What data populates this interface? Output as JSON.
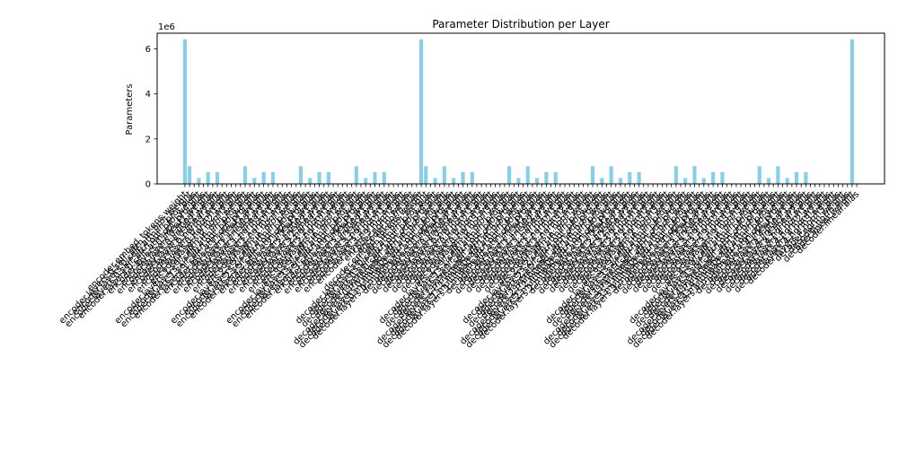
{
  "chart_data": {
    "type": "bar",
    "title": "Parameter Distribution per Layer",
    "xlabel": "",
    "ylabel": "Parameters",
    "y_scale_multiplier": "1e6",
    "ylim": [
      0,
      6.7
    ],
    "yticks": [
      0,
      2,
      4,
      6
    ],
    "bar_color": "#87ceeb",
    "grid": false,
    "category_count": 144,
    "categories": [
      "encoder.embed_tokens.weight",
      "encoder.layers.0.self_attn.in_proj_weight",
      "encoder.layers.0.self_attn.in_proj_bias",
      "encoder.layers.0.self_attn.out_proj.weight",
      "encoder.layers.0.self_attn.out_proj.bias",
      "encoder.layers.0.linear1.weight",
      "encoder.layers.0.linear1.bias",
      "encoder.layers.0.linear2.weight",
      "encoder.layers.0.linear2.bias",
      "encoder.layers.0.norm1.weight",
      "encoder.layers.0.norm1.bias",
      "encoder.layers.0.norm2.weight",
      "encoder.layers.0.norm2.bias",
      "encoder.layers.1.self_attn.in_proj_weight",
      "encoder.layers.1.self_attn.in_proj_bias",
      "encoder.layers.1.self_attn.out_proj.weight",
      "encoder.layers.1.self_attn.out_proj.bias",
      "encoder.layers.1.linear1.weight",
      "encoder.layers.1.linear1.bias",
      "encoder.layers.1.linear2.weight",
      "encoder.layers.1.linear2.bias",
      "encoder.layers.1.norm1.weight",
      "encoder.layers.1.norm1.bias",
      "encoder.layers.1.norm2.weight",
      "encoder.layers.1.norm2.bias",
      "encoder.layers.2.self_attn.in_proj_weight",
      "encoder.layers.2.self_attn.in_proj_bias",
      "encoder.layers.2.self_attn.out_proj.weight",
      "encoder.layers.2.self_attn.out_proj.bias",
      "encoder.layers.2.linear1.weight",
      "encoder.layers.2.linear1.bias",
      "encoder.layers.2.linear2.weight",
      "encoder.layers.2.linear2.bias",
      "encoder.layers.2.norm1.weight",
      "encoder.layers.2.norm1.bias",
      "encoder.layers.2.norm2.weight",
      "encoder.layers.2.norm2.bias",
      "encoder.layers.3.self_attn.in_proj_weight",
      "encoder.layers.3.self_attn.in_proj_bias",
      "encoder.layers.3.self_attn.out_proj.weight",
      "encoder.layers.3.self_attn.out_proj.bias",
      "encoder.layers.3.linear1.weight",
      "encoder.layers.3.linear1.bias",
      "encoder.layers.3.linear2.weight",
      "encoder.layers.3.linear2.bias",
      "encoder.layers.3.norm1.weight",
      "encoder.layers.3.norm1.bias",
      "encoder.layers.3.norm2.weight",
      "encoder.layers.3.norm2.bias",
      "encoder.norm.weight",
      "encoder.norm.bias",
      "decoder.embed_tokens.weight",
      "decoder.layers.0.self_attn.in_proj_weight",
      "decoder.layers.0.self_attn.in_proj_bias",
      "decoder.layers.0.self_attn.out_proj.weight",
      "decoder.layers.0.self_attn.out_proj.bias",
      "decoder.layers.0.multihead_attn.in_proj_weight",
      "decoder.layers.0.multihead_attn.in_proj_bias",
      "decoder.layers.0.multihead_attn.out_proj.weight",
      "decoder.layers.0.multihead_attn.out_proj.bias",
      "decoder.layers.0.linear1.weight",
      "decoder.layers.0.linear1.bias",
      "decoder.layers.0.linear2.weight",
      "decoder.layers.0.linear2.bias",
      "decoder.layers.0.norm1.weight",
      "decoder.layers.0.norm1.bias",
      "decoder.layers.0.norm2.weight",
      "decoder.layers.0.norm2.bias",
      "decoder.layers.0.norm3.weight",
      "decoder.layers.0.norm3.bias",
      "decoder.layers.1.self_attn.in_proj_weight",
      "decoder.layers.1.self_attn.in_proj_bias",
      "decoder.layers.1.self_attn.out_proj.weight",
      "decoder.layers.1.self_attn.out_proj.bias",
      "decoder.layers.1.multihead_attn.in_proj_weight",
      "decoder.layers.1.multihead_attn.in_proj_bias",
      "decoder.layers.1.multihead_attn.out_proj.weight",
      "decoder.layers.1.multihead_attn.out_proj.bias",
      "decoder.layers.1.linear1.weight",
      "decoder.layers.1.linear1.bias",
      "decoder.layers.1.linear2.weight",
      "decoder.layers.1.linear2.bias",
      "decoder.layers.1.norm1.weight",
      "decoder.layers.1.norm1.bias",
      "decoder.layers.1.norm2.weight",
      "decoder.layers.1.norm2.bias",
      "decoder.layers.1.norm3.weight",
      "decoder.layers.1.norm3.bias",
      "decoder.layers.2.self_attn.in_proj_weight",
      "decoder.layers.2.self_attn.in_proj_bias",
      "decoder.layers.2.self_attn.out_proj.weight",
      "decoder.layers.2.self_attn.out_proj.bias",
      "decoder.layers.2.multihead_attn.in_proj_weight",
      "decoder.layers.2.multihead_attn.in_proj_bias",
      "decoder.layers.2.multihead_attn.out_proj.weight",
      "decoder.layers.2.multihead_attn.out_proj.bias",
      "decoder.layers.2.linear1.weight",
      "decoder.layers.2.linear1.bias",
      "decoder.layers.2.linear2.weight",
      "decoder.layers.2.linear2.bias",
      "decoder.layers.2.norm1.weight",
      "decoder.layers.2.norm1.bias",
      "decoder.layers.2.norm2.weight",
      "decoder.layers.2.norm2.bias",
      "decoder.layers.2.norm3.weight",
      "decoder.layers.2.norm3.bias",
      "decoder.layers.3.self_attn.in_proj_weight",
      "decoder.layers.3.self_attn.in_proj_bias",
      "decoder.layers.3.self_attn.out_proj.weight",
      "decoder.layers.3.self_attn.out_proj.bias",
      "decoder.layers.3.multihead_attn.in_proj_weight",
      "decoder.layers.3.multihead_attn.in_proj_bias",
      "decoder.layers.3.multihead_attn.out_proj.weight",
      "decoder.layers.3.multihead_attn.out_proj.bias",
      "decoder.layers.3.linear1.weight",
      "decoder.layers.3.linear1.bias",
      "decoder.layers.3.linear2.weight",
      "decoder.layers.3.linear2.bias",
      "decoder.layers.3.norm1.weight",
      "decoder.layers.3.norm1.bias",
      "decoder.layers.3.norm2.weight",
      "decoder.layers.3.norm2.bias",
      "decoder.layers.3.norm3.weight",
      "decoder.layers.3.norm3.bias",
      "decoder.layers.4.self_attn.in_proj_weight",
      "decoder.layers.4.self_attn.in_proj_bias",
      "decoder.layers.4.self_attn.out_proj.weight",
      "decoder.layers.4.self_attn.out_proj.bias",
      "decoder.layers.4.multihead_attn.in_proj_weight",
      "decoder.layers.4.multihead_attn.in_proj_bias",
      "decoder.layers.4.multihead_attn.out_proj.weight",
      "decoder.layers.4.multihead_attn.out_proj.bias",
      "decoder.layers.4.linear1.weight",
      "decoder.layers.4.linear1.bias",
      "decoder.layers.4.linear2.weight",
      "decoder.layers.4.linear2.bias",
      "decoder.layers.4.norm1.weight",
      "decoder.layers.4.norm1.bias",
      "decoder.layers.4.norm2.weight",
      "decoder.layers.4.norm2.bias",
      "decoder.layers.4.norm3.weight",
      "decoder.layers.4.norm3.bias",
      "decoder.norm.weight",
      "decoder.norm.bias",
      "decoder.linear.weight",
      "decoder.linear.bias"
    ],
    "values": [
      6430000,
      786432,
      768,
      262144,
      256,
      524288,
      2048,
      524288,
      256,
      256,
      256,
      256,
      256,
      786432,
      768,
      262144,
      256,
      524288,
      2048,
      524288,
      256,
      256,
      256,
      256,
      256,
      786432,
      768,
      262144,
      256,
      524288,
      2048,
      524288,
      256,
      256,
      256,
      256,
      256,
      786432,
      768,
      262144,
      256,
      524288,
      2048,
      524288,
      256,
      256,
      256,
      256,
      256,
      256,
      256,
      6430000,
      786432,
      768,
      262144,
      256,
      786432,
      768,
      262144,
      256,
      524288,
      2048,
      524288,
      256,
      256,
      256,
      256,
      256,
      256,
      256,
      786432,
      768,
      262144,
      256,
      786432,
      768,
      262144,
      256,
      524288,
      2048,
      524288,
      256,
      256,
      256,
      256,
      256,
      256,
      256,
      786432,
      768,
      262144,
      256,
      786432,
      768,
      262144,
      256,
      524288,
      2048,
      524288,
      256,
      256,
      256,
      256,
      256,
      256,
      256,
      786432,
      768,
      262144,
      256,
      786432,
      768,
      262144,
      256,
      524288,
      2048,
      524288,
      256,
      256,
      256,
      256,
      256,
      256,
      256,
      786432,
      768,
      262144,
      256,
      786432,
      768,
      262144,
      256,
      524288,
      2048,
      524288,
      256,
      256,
      256,
      256,
      256,
      256,
      256,
      256,
      256,
      6430000,
      25000
    ]
  }
}
